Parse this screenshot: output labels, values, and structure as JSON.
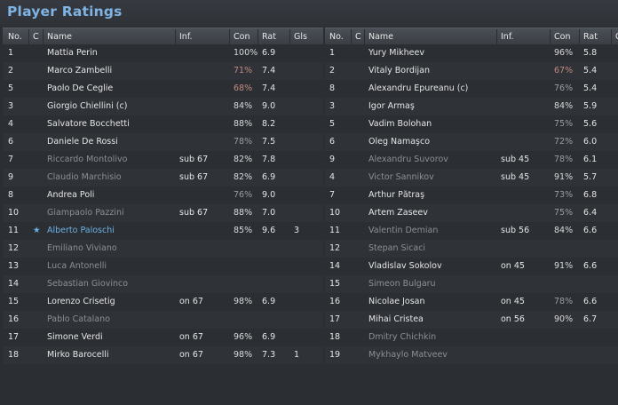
{
  "window": {
    "title": "Player Ratings"
  },
  "columns": {
    "no": "No.",
    "cap": "C",
    "name": "Name",
    "inf": "Inf.",
    "con": "Con",
    "rat": "Rat",
    "gls": "Gls"
  },
  "left_team": [
    {
      "no": "1",
      "name": "Mattia Perin",
      "inf": "",
      "con": "100%",
      "rat": "6.9",
      "gls": "",
      "played": true,
      "con_level": "good"
    },
    {
      "no": "2",
      "name": "Marco Zambelli",
      "inf": "",
      "con": "71%",
      "rat": "7.4",
      "gls": "",
      "played": true,
      "con_level": "low"
    },
    {
      "no": "5",
      "name": "Paolo De Ceglie",
      "inf": "",
      "con": "68%",
      "rat": "7.4",
      "gls": "",
      "played": true,
      "con_level": "low"
    },
    {
      "no": "3",
      "name": "Giorgio Chiellini (c)",
      "inf": "",
      "con": "84%",
      "rat": "9.0",
      "gls": "",
      "played": true,
      "con_level": "good"
    },
    {
      "no": "4",
      "name": "Salvatore Bocchetti",
      "inf": "",
      "con": "88%",
      "rat": "8.2",
      "gls": "",
      "played": true,
      "con_level": "good"
    },
    {
      "no": "6",
      "name": "Daniele De Rossi",
      "inf": "",
      "con": "78%",
      "rat": "7.5",
      "gls": "",
      "played": true,
      "con_level": "mid"
    },
    {
      "no": "7",
      "name": "Riccardo Montolivo",
      "inf": "sub 67",
      "con": "82%",
      "rat": "7.8",
      "gls": "",
      "played": false,
      "con_level": "good"
    },
    {
      "no": "9",
      "name": "Claudio Marchisio",
      "inf": "sub 67",
      "con": "82%",
      "rat": "6.9",
      "gls": "",
      "played": false,
      "con_level": "good"
    },
    {
      "no": "8",
      "name": "Andrea Poli",
      "inf": "",
      "con": "76%",
      "rat": "9.0",
      "gls": "",
      "played": true,
      "con_level": "mid"
    },
    {
      "no": "10",
      "name": "Giampaolo Pazzini",
      "inf": "sub 67",
      "con": "88%",
      "rat": "7.0",
      "gls": "",
      "played": false,
      "con_level": "good"
    },
    {
      "no": "11",
      "name": "Alberto Paloschi",
      "inf": "",
      "con": "85%",
      "rat": "9.6",
      "gls": "3",
      "played": true,
      "con_level": "good",
      "star": true
    },
    {
      "no": "12",
      "name": "Emiliano Viviano",
      "inf": "",
      "con": "",
      "rat": "",
      "gls": "",
      "played": false,
      "con_level": "good"
    },
    {
      "no": "13",
      "name": "Luca Antonelli",
      "inf": "",
      "con": "",
      "rat": "",
      "gls": "",
      "played": false,
      "con_level": "good"
    },
    {
      "no": "14",
      "name": "Sebastian Giovinco",
      "inf": "",
      "con": "",
      "rat": "",
      "gls": "",
      "played": false,
      "con_level": "good"
    },
    {
      "no": "15",
      "name": "Lorenzo Crisetig",
      "inf": "on 67",
      "con": "98%",
      "rat": "6.9",
      "gls": "",
      "played": true,
      "con_level": "good"
    },
    {
      "no": "16",
      "name": "Pablo Catalano",
      "inf": "",
      "con": "",
      "rat": "",
      "gls": "",
      "played": false,
      "con_level": "good"
    },
    {
      "no": "17",
      "name": "Simone Verdi",
      "inf": "on 67",
      "con": "96%",
      "rat": "6.9",
      "gls": "",
      "played": true,
      "con_level": "good"
    },
    {
      "no": "18",
      "name": "Mirko Barocelli",
      "inf": "on 67",
      "con": "98%",
      "rat": "7.3",
      "gls": "1",
      "played": true,
      "con_level": "good"
    }
  ],
  "right_team": [
    {
      "no": "1",
      "name": "Yury Mikheev",
      "inf": "",
      "con": "96%",
      "rat": "5.8",
      "played": true,
      "con_level": "good"
    },
    {
      "no": "2",
      "name": "Vitaly Bordijan",
      "inf": "",
      "con": "67%",
      "rat": "5.4",
      "played": true,
      "con_level": "low"
    },
    {
      "no": "8",
      "name": "Alexandru Epureanu (c)",
      "inf": "",
      "con": "76%",
      "rat": "5.4",
      "played": true,
      "con_level": "mid"
    },
    {
      "no": "3",
      "name": "Igor Armaş",
      "inf": "",
      "con": "84%",
      "rat": "5.9",
      "played": true,
      "con_level": "good"
    },
    {
      "no": "5",
      "name": "Vadim Bolohan",
      "inf": "",
      "con": "75%",
      "rat": "5.6",
      "played": true,
      "con_level": "mid"
    },
    {
      "no": "6",
      "name": "Oleg Namaşco",
      "inf": "",
      "con": "72%",
      "rat": "6.0",
      "played": true,
      "con_level": "mid"
    },
    {
      "no": "9",
      "name": "Alexandru Suvorov",
      "inf": "sub 45",
      "con": "78%",
      "rat": "6.1",
      "played": false,
      "con_level": "mid"
    },
    {
      "no": "4",
      "name": "Victor Sannikov",
      "inf": "sub 45",
      "con": "91%",
      "rat": "5.7",
      "played": false,
      "con_level": "good"
    },
    {
      "no": "7",
      "name": "Arthur Pătraş",
      "inf": "",
      "con": "73%",
      "rat": "6.8",
      "played": true,
      "con_level": "mid"
    },
    {
      "no": "10",
      "name": "Artem Zaseev",
      "inf": "",
      "con": "75%",
      "rat": "6.4",
      "played": true,
      "con_level": "mid"
    },
    {
      "no": "11",
      "name": "Valentin Demian",
      "inf": "sub 56",
      "con": "84%",
      "rat": "6.6",
      "played": false,
      "con_level": "good"
    },
    {
      "no": "12",
      "name": "Stepan Sicaci",
      "inf": "",
      "con": "",
      "rat": "",
      "played": false,
      "con_level": "good"
    },
    {
      "no": "14",
      "name": "Vladislav Sokolov",
      "inf": "on 45",
      "con": "91%",
      "rat": "6.6",
      "played": true,
      "con_level": "good"
    },
    {
      "no": "15",
      "name": "Simeon Bulgaru",
      "inf": "",
      "con": "",
      "rat": "",
      "played": false,
      "con_level": "good"
    },
    {
      "no": "16",
      "name": "Nicolae Josan",
      "inf": "on 45",
      "con": "78%",
      "rat": "6.6",
      "played": true,
      "con_level": "mid"
    },
    {
      "no": "17",
      "name": "Mihai Cristea",
      "inf": "on 56",
      "con": "90%",
      "rat": "6.7",
      "played": true,
      "con_level": "good"
    },
    {
      "no": "18",
      "name": "Dmitry Chichkin",
      "inf": "",
      "con": "",
      "rat": "",
      "played": false,
      "con_level": "good"
    },
    {
      "no": "19",
      "name": "Mykhaylo Matveev",
      "inf": "",
      "con": "",
      "rat": "",
      "played": false,
      "con_level": "good"
    }
  ],
  "icons": {
    "star": "star-icon"
  },
  "colors": {
    "title": "#7fb3e3",
    "highlight": "#6db2e6",
    "background": "#2b2e33",
    "condition_low": "#c08a80"
  }
}
